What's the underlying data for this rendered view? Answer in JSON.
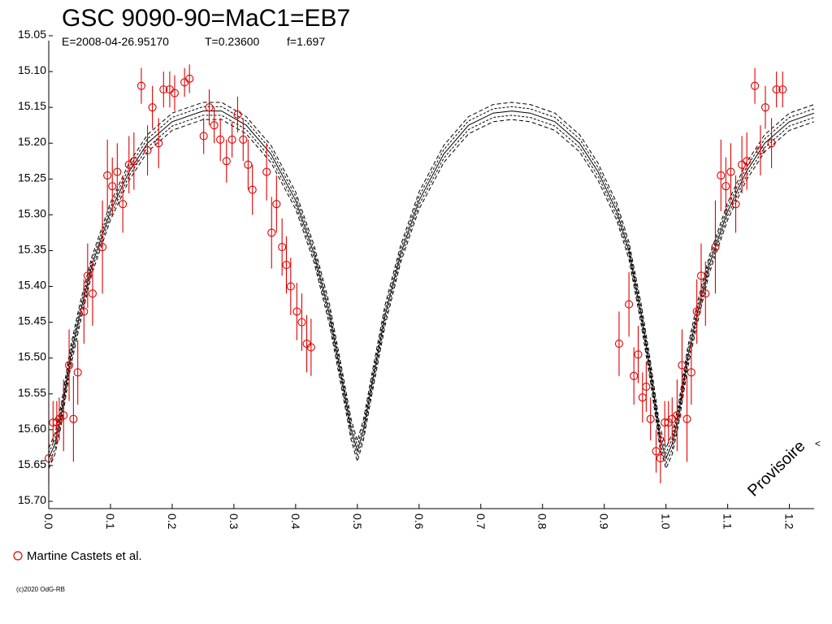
{
  "header": {
    "title": "GSC 9090-90=MaC1=EB7",
    "epoch": "E=2008-04-26.95170",
    "period": "T=0.23600",
    "fill": "f=1.697"
  },
  "watermark": "Provisoire",
  "credit": "(c)2020 OdG-RB",
  "legend": {
    "label": "Martine Castets et al.",
    "marker_color": "#e00000"
  },
  "colors": {
    "data": "#e00000",
    "model": "#000000",
    "axis": "#000000"
  },
  "chart_data": {
    "type": "scatter",
    "title": "GSC 9090-90=MaC1=EB7",
    "xlabel": "",
    "ylabel": "",
    "xlim": [
      0.0,
      1.24
    ],
    "ylim": [
      15.7,
      15.05
    ],
    "y_inverted": true,
    "grid": false,
    "legend_position": "bottom-left",
    "x_ticks": [
      "0.0",
      "0.1",
      "0.2",
      "0.3",
      "0.4",
      "0.5",
      "0.6",
      "0.7",
      "0.8",
      "0.9",
      "1.0",
      "1.1",
      "1.2"
    ],
    "y_ticks": [
      "15.05",
      "15.10",
      "15.15",
      "15.20",
      "15.25",
      "15.30",
      "15.35",
      "15.40",
      "15.45",
      "15.50",
      "15.55",
      "15.60",
      "15.65",
      "15.70"
    ],
    "series": [
      {
        "name": "Martine Castets et al.",
        "kind": "points_with_errorbars",
        "points": [
          {
            "x": 0.0,
            "y": 15.64,
            "err": 0.035
          },
          {
            "x": 0.007,
            "y": 15.59,
            "err": 0.03
          },
          {
            "x": 0.013,
            "y": 15.59,
            "err": 0.03
          },
          {
            "x": 0.017,
            "y": 15.585,
            "err": 0.03
          },
          {
            "x": 0.024,
            "y": 15.58,
            "err": 0.05
          },
          {
            "x": 0.033,
            "y": 15.51,
            "err": 0.05
          },
          {
            "x": 0.04,
            "y": 15.585,
            "err": 0.06
          },
          {
            "x": 0.047,
            "y": 15.52,
            "err": 0.045
          },
          {
            "x": 0.057,
            "y": 15.435,
            "err": 0.045
          },
          {
            "x": 0.063,
            "y": 15.385,
            "err": 0.045
          },
          {
            "x": 0.071,
            "y": 15.41,
            "err": 0.045
          },
          {
            "x": 0.087,
            "y": 15.345,
            "err": 0.065
          },
          {
            "x": 0.095,
            "y": 15.245,
            "err": 0.05
          },
          {
            "x": 0.103,
            "y": 15.26,
            "err": 0.04
          },
          {
            "x": 0.111,
            "y": 15.24,
            "err": 0.04
          },
          {
            "x": 0.12,
            "y": 15.285,
            "err": 0.04
          },
          {
            "x": 0.13,
            "y": 15.23,
            "err": 0.04
          },
          {
            "x": 0.138,
            "y": 15.225,
            "err": 0.04
          },
          {
            "x": 0.15,
            "y": 15.12,
            "err": 0.025
          },
          {
            "x": 0.16,
            "y": 15.21,
            "err": 0.035
          },
          {
            "x": 0.168,
            "y": 15.15,
            "err": 0.03
          },
          {
            "x": 0.178,
            "y": 15.2,
            "err": 0.035
          },
          {
            "x": 0.186,
            "y": 15.125,
            "err": 0.025
          },
          {
            "x": 0.196,
            "y": 15.125,
            "err": 0.025
          },
          {
            "x": 0.204,
            "y": 15.13,
            "err": 0.025
          },
          {
            "x": 0.22,
            "y": 15.115,
            "err": 0.02
          },
          {
            "x": 0.228,
            "y": 15.11,
            "err": 0.02
          },
          {
            "x": 0.251,
            "y": 15.19,
            "err": 0.025
          },
          {
            "x": 0.26,
            "y": 15.15,
            "err": 0.025
          },
          {
            "x": 0.268,
            "y": 15.175,
            "err": 0.025
          },
          {
            "x": 0.278,
            "y": 15.195,
            "err": 0.03
          },
          {
            "x": 0.288,
            "y": 15.225,
            "err": 0.03
          },
          {
            "x": 0.297,
            "y": 15.195,
            "err": 0.025
          },
          {
            "x": 0.306,
            "y": 15.16,
            "err": 0.025
          },
          {
            "x": 0.315,
            "y": 15.195,
            "err": 0.03
          },
          {
            "x": 0.323,
            "y": 15.23,
            "err": 0.035
          },
          {
            "x": 0.33,
            "y": 15.265,
            "err": 0.035
          },
          {
            "x": 0.353,
            "y": 15.24,
            "err": 0.04
          },
          {
            "x": 0.361,
            "y": 15.325,
            "err": 0.05
          },
          {
            "x": 0.369,
            "y": 15.285,
            "err": 0.04
          },
          {
            "x": 0.378,
            "y": 15.345,
            "err": 0.04
          },
          {
            "x": 0.385,
            "y": 15.37,
            "err": 0.04
          },
          {
            "x": 0.392,
            "y": 15.4,
            "err": 0.04
          },
          {
            "x": 0.402,
            "y": 15.435,
            "err": 0.04
          },
          {
            "x": 0.41,
            "y": 15.45,
            "err": 0.04
          },
          {
            "x": 0.418,
            "y": 15.48,
            "err": 0.04
          },
          {
            "x": 0.425,
            "y": 15.485,
            "err": 0.04
          },
          {
            "x": 0.924,
            "y": 15.48,
            "err": 0.045
          },
          {
            "x": 0.94,
            "y": 15.425,
            "err": 0.045
          },
          {
            "x": 0.948,
            "y": 15.525,
            "err": 0.04
          },
          {
            "x": 0.955,
            "y": 15.495,
            "err": 0.04
          },
          {
            "x": 0.962,
            "y": 15.555,
            "err": 0.035
          },
          {
            "x": 0.968,
            "y": 15.54,
            "err": 0.035
          },
          {
            "x": 0.975,
            "y": 15.585,
            "err": 0.03
          },
          {
            "x": 0.984,
            "y": 15.63,
            "err": 0.03
          },
          {
            "x": 0.991,
            "y": 15.64,
            "err": 0.035
          },
          {
            "x": 0.998,
            "y": 15.59,
            "err": 0.03
          },
          {
            "x": 1.004,
            "y": 15.59,
            "err": 0.03
          },
          {
            "x": 1.01,
            "y": 15.585,
            "err": 0.03
          },
          {
            "x": 1.018,
            "y": 15.58,
            "err": 0.05
          },
          {
            "x": 1.026,
            "y": 15.51,
            "err": 0.05
          },
          {
            "x": 1.034,
            "y": 15.585,
            "err": 0.06
          },
          {
            "x": 1.041,
            "y": 15.52,
            "err": 0.045
          },
          {
            "x": 1.05,
            "y": 15.435,
            "err": 0.045
          },
          {
            "x": 1.057,
            "y": 15.385,
            "err": 0.045
          },
          {
            "x": 1.064,
            "y": 15.41,
            "err": 0.045
          },
          {
            "x": 1.08,
            "y": 15.345,
            "err": 0.065
          },
          {
            "x": 1.089,
            "y": 15.245,
            "err": 0.05
          },
          {
            "x": 1.097,
            "y": 15.26,
            "err": 0.04
          },
          {
            "x": 1.105,
            "y": 15.24,
            "err": 0.04
          },
          {
            "x": 1.113,
            "y": 15.285,
            "err": 0.04
          },
          {
            "x": 1.123,
            "y": 15.23,
            "err": 0.04
          },
          {
            "x": 1.131,
            "y": 15.225,
            "err": 0.04
          },
          {
            "x": 1.144,
            "y": 15.12,
            "err": 0.025
          },
          {
            "x": 1.153,
            "y": 15.21,
            "err": 0.035
          },
          {
            "x": 1.161,
            "y": 15.15,
            "err": 0.03
          },
          {
            "x": 1.171,
            "y": 15.2,
            "err": 0.035
          },
          {
            "x": 1.179,
            "y": 15.125,
            "err": 0.025
          },
          {
            "x": 1.189,
            "y": 15.125,
            "err": 0.025
          }
        ]
      },
      {
        "kind": "model_curve",
        "style": "solid+dashed envelope",
        "max_mag": 15.155,
        "primary_min": {
          "x": 1.0,
          "y": 15.64
        },
        "secondary_min": {
          "x": 0.5,
          "y": 15.63
        },
        "envelope_offsets": [
          -0.012,
          -0.006,
          0,
          0.006,
          0.012
        ],
        "points": [
          {
            "x": 0.0,
            "y": 15.64
          },
          {
            "x": 0.01,
            "y": 15.62
          },
          {
            "x": 0.02,
            "y": 15.58
          },
          {
            "x": 0.035,
            "y": 15.5
          },
          {
            "x": 0.05,
            "y": 15.44
          },
          {
            "x": 0.07,
            "y": 15.37
          },
          {
            "x": 0.1,
            "y": 15.295
          },
          {
            "x": 0.13,
            "y": 15.24
          },
          {
            "x": 0.16,
            "y": 15.2
          },
          {
            "x": 0.2,
            "y": 15.17
          },
          {
            "x": 0.25,
            "y": 15.155
          },
          {
            "x": 0.28,
            "y": 15.155
          },
          {
            "x": 0.32,
            "y": 15.175
          },
          {
            "x": 0.36,
            "y": 15.215
          },
          {
            "x": 0.4,
            "y": 15.28
          },
          {
            "x": 0.43,
            "y": 15.355
          },
          {
            "x": 0.455,
            "y": 15.44
          },
          {
            "x": 0.475,
            "y": 15.53
          },
          {
            "x": 0.49,
            "y": 15.6
          },
          {
            "x": 0.5,
            "y": 15.63
          },
          {
            "x": 0.51,
            "y": 15.6
          },
          {
            "x": 0.525,
            "y": 15.53
          },
          {
            "x": 0.545,
            "y": 15.44
          },
          {
            "x": 0.57,
            "y": 15.355
          },
          {
            "x": 0.6,
            "y": 15.28
          },
          {
            "x": 0.64,
            "y": 15.215
          },
          {
            "x": 0.68,
            "y": 15.175
          },
          {
            "x": 0.72,
            "y": 15.158
          },
          {
            "x": 0.75,
            "y": 15.155
          },
          {
            "x": 0.78,
            "y": 15.158
          },
          {
            "x": 0.82,
            "y": 15.17
          },
          {
            "x": 0.86,
            "y": 15.2
          },
          {
            "x": 0.89,
            "y": 15.24
          },
          {
            "x": 0.92,
            "y": 15.295
          },
          {
            "x": 0.94,
            "y": 15.35
          },
          {
            "x": 0.96,
            "y": 15.44
          },
          {
            "x": 0.975,
            "y": 15.52
          },
          {
            "x": 0.99,
            "y": 15.61
          },
          {
            "x": 1.0,
            "y": 15.64
          },
          {
            "x": 1.01,
            "y": 15.62
          },
          {
            "x": 1.02,
            "y": 15.58
          },
          {
            "x": 1.035,
            "y": 15.5
          },
          {
            "x": 1.05,
            "y": 15.44
          },
          {
            "x": 1.07,
            "y": 15.37
          },
          {
            "x": 1.1,
            "y": 15.295
          },
          {
            "x": 1.13,
            "y": 15.24
          },
          {
            "x": 1.16,
            "y": 15.2
          },
          {
            "x": 1.2,
            "y": 15.17
          },
          {
            "x": 1.24,
            "y": 15.158
          }
        ]
      }
    ]
  }
}
